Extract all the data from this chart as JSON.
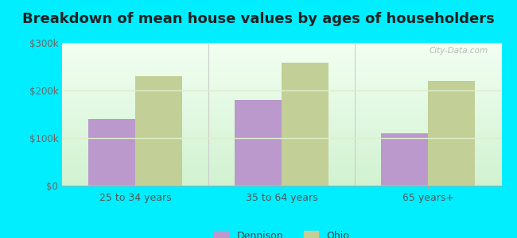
{
  "title": "Breakdown of mean house values by ages of householders",
  "categories": [
    "25 to 34 years",
    "35 to 64 years",
    "65 years+"
  ],
  "dennison_values": [
    140000,
    180000,
    110000
  ],
  "ohio_values": [
    230000,
    258000,
    220000
  ],
  "ylim": [
    0,
    300000
  ],
  "yticks": [
    0,
    100000,
    200000,
    300000
  ],
  "ytick_labels": [
    "$0",
    "$100k",
    "$200k",
    "$300k"
  ],
  "dennison_color": "#bb99cc",
  "ohio_color": "#c2cf96",
  "background_color": "#00eeff",
  "title_fontsize": 13,
  "bar_width": 0.32,
  "legend_labels": [
    "Dennison",
    "Ohio"
  ],
  "watermark": "City-Data.com"
}
